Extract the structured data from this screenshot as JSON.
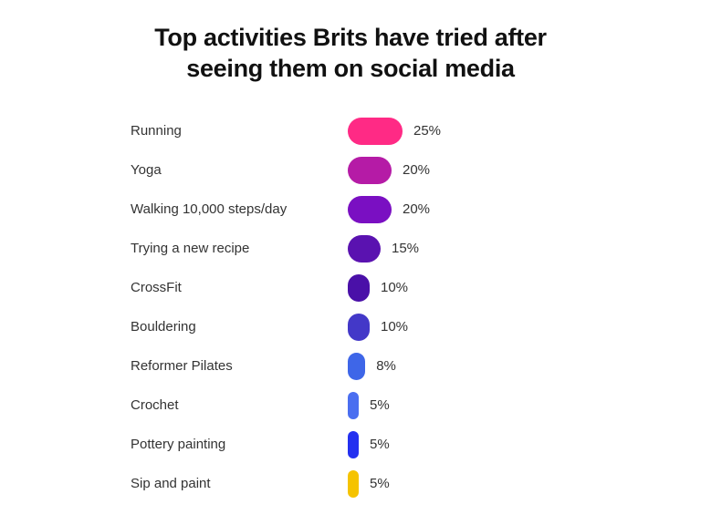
{
  "chart_data": {
    "type": "bar",
    "orientation": "horizontal",
    "title": "Top activities Brits have tried after seeing them on social media",
    "title_lines": [
      "Top activities Brits have tried after",
      "seeing them on social media"
    ],
    "categories": [
      "Running",
      "Yoga",
      "Walking 10,000 steps/day",
      "Trying a new recipe",
      "CrossFit",
      "Bouldering",
      "Reformer Pilates",
      "Crochet",
      "Pottery painting",
      "Sip and paint"
    ],
    "values": [
      25,
      20,
      20,
      15,
      10,
      10,
      8,
      5,
      5,
      5
    ],
    "value_labels": [
      "25%",
      "20%",
      "20%",
      "15%",
      "10%",
      "10%",
      "8%",
      "5%",
      "5%",
      "5%"
    ],
    "colors": [
      "#ff2a85",
      "#b51ba6",
      "#7a0fc2",
      "#5a12b0",
      "#4a10a8",
      "#4338c8",
      "#3e66e8",
      "#4a6ef0",
      "#2430f0",
      "#f5c300"
    ],
    "xlim": [
      0,
      25
    ],
    "grid": false,
    "legend": "none"
  }
}
